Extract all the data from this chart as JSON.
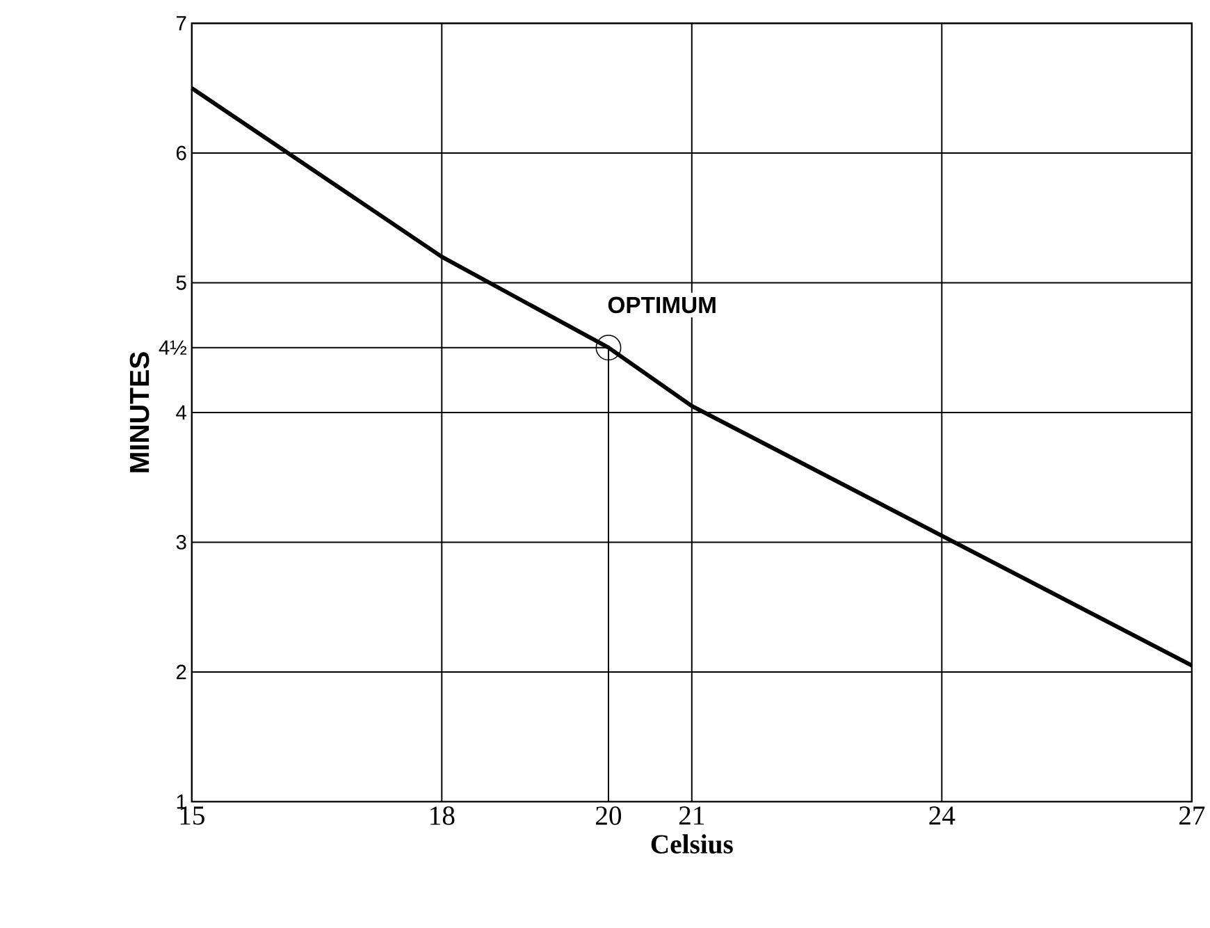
{
  "chart_data": {
    "type": "line",
    "xlabel": "Celsius",
    "ylabel": "MINUTES",
    "x": [
      15,
      18,
      20,
      21,
      24,
      27
    ],
    "series": [
      {
        "color": "#000000",
        "values": [
          6.5,
          5.2,
          4.5,
          4.05,
          3.05,
          2.05
        ]
      },
      {
        "type": "scatter",
        "marker": "circle",
        "color": "#000000",
        "x": [
          20
        ],
        "values": [
          4.5
        ]
      }
    ],
    "xlim": [
      15,
      27
    ],
    "ylim": [
      1,
      7
    ],
    "xticks": [
      15,
      18,
      20,
      21,
      24,
      27
    ],
    "yticks": [
      1,
      2,
      3,
      4,
      {
        "value": 4.5,
        "label": "4½"
      },
      5,
      6,
      7
    ],
    "grid": true,
    "ref_lines": [
      {
        "axis": "x",
        "value": 20
      },
      {
        "axis": "y",
        "value": 4.5
      }
    ],
    "annotations": [
      {
        "text": "OPTIMUM",
        "x": 20,
        "y": 4.5
      }
    ]
  }
}
